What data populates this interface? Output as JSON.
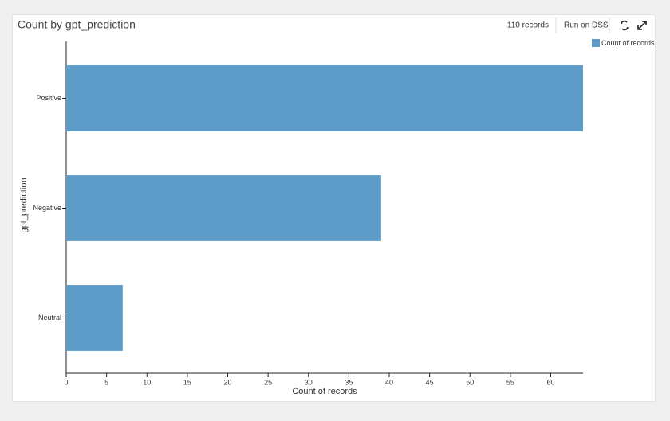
{
  "toolbar": {
    "records": "110 records",
    "run_button": "Run on DSS"
  },
  "chart_data": {
    "type": "bar",
    "orientation": "horizontal",
    "title": "Count by gpt_prediction",
    "categories": [
      "Positive",
      "Negative",
      "Neutral"
    ],
    "series": [
      {
        "name": "Count of records",
        "color": "#5d9cc9",
        "values": [
          64,
          39,
          7
        ]
      }
    ],
    "xlabel": "Count of records",
    "ylabel": "gpt_prediction",
    "xlim": [
      0,
      64
    ],
    "xticks": [
      0,
      5,
      10,
      15,
      20,
      25,
      30,
      35,
      40,
      45,
      50,
      55,
      60
    ],
    "legend": "top-right"
  }
}
